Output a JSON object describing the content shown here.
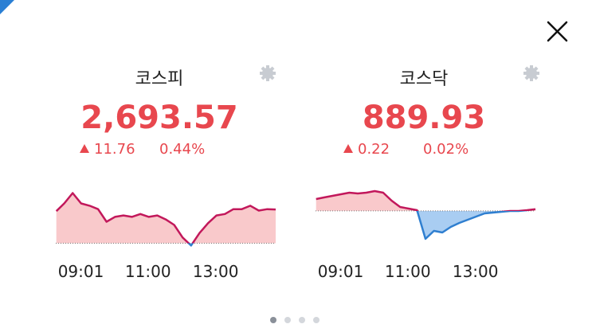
{
  "chart_data": [
    {
      "type": "line",
      "title": "코스피",
      "price": {
        "value": 2693.57,
        "label": "2,693.57"
      },
      "change": 11.76,
      "change_pct": {
        "value": 0.44,
        "label": "0.44%"
      },
      "x": [
        "09:01",
        "09:15",
        "09:30",
        "09:45",
        "10:00",
        "10:15",
        "10:30",
        "10:45",
        "11:00",
        "11:15",
        "11:30",
        "11:45",
        "12:00",
        "12:15",
        "12:30",
        "12:45",
        "13:00",
        "13:15",
        "13:30",
        "13:45",
        "14:00",
        "14:15",
        "14:30",
        "14:45",
        "15:00",
        "15:15",
        "15:30"
      ],
      "values": [
        2693,
        2695.7,
        2699.3,
        2695.7,
        2694.9,
        2693.7,
        2689.3,
        2691,
        2691.5,
        2691,
        2692,
        2691,
        2691.5,
        2690.1,
        2688.2,
        2683.8,
        2681,
        2685.4,
        2688.8,
        2691.5,
        2692,
        2693.7,
        2693.7,
        2694.9,
        2693.2,
        2693.7,
        2693.57
      ],
      "xlim": [
        "09:00",
        "15:30"
      ],
      "xticks": [
        "09:01",
        "11:00",
        "13:00"
      ],
      "ylim": [
        2680,
        2705
      ],
      "reference_line": 2681.81,
      "color_up": "#c2185b",
      "color_down": "#2f7fd0",
      "fill_up": "#f9c9cb",
      "fill_down": "#a9cdf2",
      "text_color": "#e8474e"
    },
    {
      "type": "line",
      "title": "코스닥",
      "price": {
        "value": 889.93,
        "label": "889.93"
      },
      "change": 0.22,
      "change_pct": {
        "value": 0.02,
        "label": "0.02%"
      },
      "x": [
        "09:01",
        "09:15",
        "09:30",
        "09:45",
        "10:00",
        "10:15",
        "10:30",
        "10:45",
        "11:00",
        "11:15",
        "11:30",
        "11:45",
        "12:00",
        "12:15",
        "12:30",
        "12:45",
        "13:00",
        "13:15",
        "13:30",
        "13:45",
        "14:00",
        "14:15",
        "14:30",
        "14:45",
        "15:00",
        "15:15",
        "15:30"
      ],
      "values": [
        891.2,
        891.4,
        891.6,
        891.8,
        892,
        891.9,
        892,
        892.2,
        892,
        891,
        890.2,
        890,
        889.8,
        886.2,
        887.2,
        887,
        887.7,
        888.2,
        888.6,
        889,
        889.4,
        889.5,
        889.6,
        889.7,
        889.7,
        889.8,
        889.93
      ],
      "xlim": [
        "09:00",
        "15:30"
      ],
      "xticks": [
        "09:01",
        "11:00",
        "13:00"
      ],
      "ylim": [
        885,
        894
      ],
      "reference_line": 889.71,
      "color_up": "#c2185b",
      "color_down": "#2f7fd0",
      "fill_up": "#f9c9cb",
      "fill_down": "#a9cdf2",
      "text_color": "#e8474e"
    }
  ]
}
